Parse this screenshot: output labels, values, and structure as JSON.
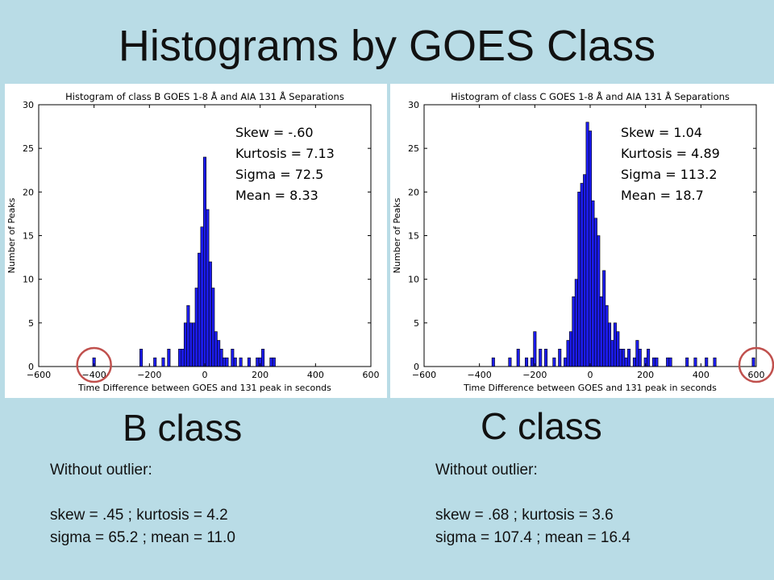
{
  "slide": {
    "title": "Histograms by GOES Class"
  },
  "chart_data": [
    {
      "type": "bar",
      "title": "Histogram of class B GOES 1-8 Å and AIA 131 Å Separations",
      "xlabel": "Time Difference between GOES and 131 peak in seconds",
      "ylabel": "Number of Peaks",
      "xlim": [
        -600,
        600
      ],
      "ylim": [
        0,
        30
      ],
      "xticks": [
        -600,
        -400,
        -200,
        0,
        200,
        400,
        600
      ],
      "yticks": [
        0,
        5,
        10,
        15,
        20,
        25,
        30
      ],
      "bin_width": 10,
      "bins": [
        {
          "x": -400,
          "y": 1
        },
        {
          "x": -230,
          "y": 2
        },
        {
          "x": -180,
          "y": 1
        },
        {
          "x": -150,
          "y": 1
        },
        {
          "x": -130,
          "y": 2
        },
        {
          "x": -90,
          "y": 2
        },
        {
          "x": -80,
          "y": 2
        },
        {
          "x": -70,
          "y": 5
        },
        {
          "x": -60,
          "y": 7
        },
        {
          "x": -50,
          "y": 5
        },
        {
          "x": -40,
          "y": 5
        },
        {
          "x": -30,
          "y": 9
        },
        {
          "x": -20,
          "y": 13
        },
        {
          "x": -10,
          "y": 16
        },
        {
          "x": 0,
          "y": 24
        },
        {
          "x": 10,
          "y": 18
        },
        {
          "x": 20,
          "y": 12
        },
        {
          "x": 30,
          "y": 9
        },
        {
          "x": 40,
          "y": 4
        },
        {
          "x": 50,
          "y": 3
        },
        {
          "x": 60,
          "y": 2
        },
        {
          "x": 70,
          "y": 1
        },
        {
          "x": 80,
          "y": 1
        },
        {
          "x": 100,
          "y": 2
        },
        {
          "x": 110,
          "y": 1
        },
        {
          "x": 130,
          "y": 1
        },
        {
          "x": 160,
          "y": 1
        },
        {
          "x": 190,
          "y": 1
        },
        {
          "x": 200,
          "y": 1
        },
        {
          "x": 210,
          "y": 2
        },
        {
          "x": 240,
          "y": 1
        },
        {
          "x": 250,
          "y": 1
        }
      ],
      "bar_color": "#1c1cf0",
      "annotations": [
        "Skew = -.60",
        "Kurtosis = 7.13",
        "Sigma = 72.5",
        "Mean = 8.33"
      ],
      "outlier_circle_x": -400,
      "highlight_color": "#c0504d",
      "grid": false
    },
    {
      "type": "bar",
      "title": "Histogram of class C GOES 1-8 Å and AIA 131 Å Separations",
      "xlabel": "Time Difference between GOES and 131 peak in seconds",
      "ylabel": "Number of Peaks",
      "xlim": [
        -600,
        600
      ],
      "ylim": [
        0,
        30
      ],
      "xticks": [
        -600,
        -400,
        -200,
        0,
        200,
        400,
        600
      ],
      "yticks": [
        0,
        5,
        10,
        15,
        20,
        25,
        30
      ],
      "bin_width": 10,
      "bins": [
        {
          "x": -350,
          "y": 1
        },
        {
          "x": -290,
          "y": 1
        },
        {
          "x": -260,
          "y": 2
        },
        {
          "x": -230,
          "y": 1
        },
        {
          "x": -210,
          "y": 1
        },
        {
          "x": -200,
          "y": 4
        },
        {
          "x": -180,
          "y": 2
        },
        {
          "x": -160,
          "y": 2
        },
        {
          "x": -130,
          "y": 1
        },
        {
          "x": -110,
          "y": 2
        },
        {
          "x": -90,
          "y": 1
        },
        {
          "x": -80,
          "y": 3
        },
        {
          "x": -70,
          "y": 4
        },
        {
          "x": -60,
          "y": 8
        },
        {
          "x": -50,
          "y": 10
        },
        {
          "x": -40,
          "y": 20
        },
        {
          "x": -30,
          "y": 21
        },
        {
          "x": -20,
          "y": 22
        },
        {
          "x": -10,
          "y": 28
        },
        {
          "x": 0,
          "y": 27
        },
        {
          "x": 10,
          "y": 19
        },
        {
          "x": 20,
          "y": 17
        },
        {
          "x": 30,
          "y": 15
        },
        {
          "x": 40,
          "y": 8
        },
        {
          "x": 50,
          "y": 11
        },
        {
          "x": 60,
          "y": 7
        },
        {
          "x": 70,
          "y": 5
        },
        {
          "x": 80,
          "y": 3
        },
        {
          "x": 90,
          "y": 5
        },
        {
          "x": 100,
          "y": 4
        },
        {
          "x": 110,
          "y": 2
        },
        {
          "x": 120,
          "y": 2
        },
        {
          "x": 130,
          "y": 1
        },
        {
          "x": 140,
          "y": 2
        },
        {
          "x": 160,
          "y": 1
        },
        {
          "x": 170,
          "y": 3
        },
        {
          "x": 180,
          "y": 2
        },
        {
          "x": 200,
          "y": 1
        },
        {
          "x": 210,
          "y": 2
        },
        {
          "x": 230,
          "y": 1
        },
        {
          "x": 240,
          "y": 1
        },
        {
          "x": 280,
          "y": 1
        },
        {
          "x": 290,
          "y": 1
        },
        {
          "x": 350,
          "y": 1
        },
        {
          "x": 380,
          "y": 1
        },
        {
          "x": 420,
          "y": 1
        },
        {
          "x": 450,
          "y": 1
        },
        {
          "x": 590,
          "y": 1
        }
      ],
      "bar_color": "#1c1cf0",
      "annotations": [
        "Skew = 1.04",
        "Kurtosis = 4.89",
        "Sigma = 113.2",
        "Mean = 18.7"
      ],
      "outlier_circle_x": 600,
      "highlight_color": "#c0504d",
      "grid": false
    }
  ],
  "labels": {
    "b_class": "B class",
    "c_class": "C class"
  },
  "outliers": {
    "b": {
      "heading": "Without outlier:",
      "line1": "skew = .45 ; kurtosis = 4.2",
      "line2": "sigma = 65.2 ; mean = 11.0"
    },
    "c": {
      "heading": "Without outlier:",
      "line1": "skew = .68 ; kurtosis = 3.6",
      "line2": "sigma = 107.4 ; mean = 16.4"
    }
  }
}
